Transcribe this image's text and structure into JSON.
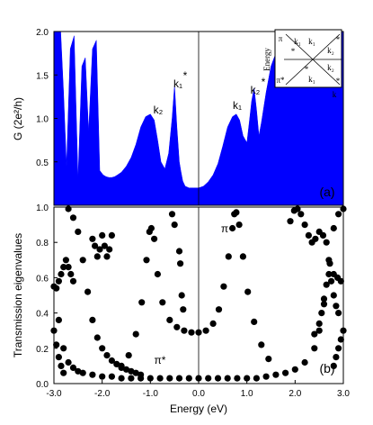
{
  "chart_data": [
    {
      "type": "area",
      "panel_tag": "(a)",
      "ylabel": "G (2e²/h)",
      "ylim": [
        0.0,
        2.0
      ],
      "xlim": [
        -3.0,
        3.0
      ],
      "yticks": [
        "0.5",
        "1.0",
        "1.5",
        "2.0"
      ],
      "fill_color": "#0000ff",
      "grid": false,
      "x": [
        -3.0,
        -2.92,
        -2.86,
        -2.8,
        -2.74,
        -2.66,
        -2.58,
        -2.5,
        -2.42,
        -2.35,
        -2.28,
        -2.2,
        -2.12,
        -2.05,
        -1.98,
        -1.92,
        -1.86,
        -1.8,
        -1.74,
        -1.68,
        -1.6,
        -1.5,
        -1.4,
        -1.3,
        -1.2,
        -1.1,
        -1.0,
        -0.92,
        -0.85,
        -0.78,
        -0.7,
        -0.62,
        -0.55,
        -0.5,
        -0.45,
        -0.4,
        -0.37,
        -0.33,
        -0.28,
        -0.2,
        -0.1,
        0.0,
        0.1,
        0.2,
        0.3,
        0.4,
        0.5,
        0.6,
        0.7,
        0.78,
        0.85,
        0.92,
        1.0,
        1.05,
        1.1,
        1.15,
        1.2,
        1.25,
        1.3,
        1.4,
        1.5,
        1.6,
        1.7,
        1.8,
        1.9,
        2.0,
        2.1,
        2.2,
        2.3,
        2.4,
        2.5,
        2.6,
        2.7,
        2.8,
        2.9,
        3.0
      ],
      "y": [
        2.0,
        2.0,
        2.0,
        1.3,
        0.45,
        1.8,
        1.95,
        0.3,
        1.6,
        1.7,
        0.85,
        1.8,
        1.9,
        0.4,
        0.35,
        0.33,
        0.32,
        0.32,
        0.33,
        0.35,
        0.38,
        0.45,
        0.55,
        0.7,
        0.9,
        1.02,
        1.05,
        0.98,
        0.75,
        0.5,
        0.42,
        0.6,
        1.0,
        1.38,
        0.9,
        0.5,
        0.4,
        0.28,
        0.22,
        0.2,
        0.2,
        0.2,
        0.22,
        0.27,
        0.35,
        0.48,
        0.68,
        0.9,
        1.02,
        1.05,
        0.98,
        0.8,
        0.72,
        0.95,
        1.2,
        1.35,
        1.1,
        0.8,
        0.95,
        1.3,
        1.6,
        1.75,
        1.85,
        1.95,
        2.0,
        2.0,
        1.9,
        2.0,
        2.0,
        1.95,
        2.0,
        2.0,
        1.9,
        2.0,
        2.0,
        2.0
      ],
      "annotations": [
        "k₂",
        "k₁",
        "*",
        "k₁",
        "k₂",
        "*"
      ],
      "inset": {
        "labels": [
          "π",
          "π*",
          "k₁",
          "k₂",
          "k₁",
          "k₂",
          "k₁",
          "*",
          "*",
          "*",
          "*"
        ],
        "ylabel": "Energy",
        "xlabel": "k"
      }
    },
    {
      "type": "scatter",
      "panel_tag": "(b)",
      "ylabel": "Transmission eigenvalues",
      "xlabel": "Energy (eV)",
      "ylim": [
        0.0,
        1.0
      ],
      "xlim": [
        -3.0,
        3.0
      ],
      "xticks": [
        "-3.0",
        "-2.0",
        "-1.0",
        "0.0",
        "1.0",
        "2.0",
        "3.0"
      ],
      "yticks": [
        "0.0",
        "0.2",
        "0.4",
        "0.6",
        "0.8",
        "1.0"
      ],
      "grid": false,
      "annotations": [
        "π",
        "π*"
      ],
      "series": [
        {
          "x": [
            -1.6,
            -1.45,
            -1.3,
            -1.18,
            -1.08,
            -1.02,
            -0.98,
            -0.92,
            -0.85,
            -0.75,
            -0.6,
            -0.45,
            -0.3,
            -0.15,
            0.0,
            0.15,
            0.3,
            0.42,
            0.52,
            0.62,
            0.7,
            0.74,
            0.78,
            0.84,
            0.92,
            1.02,
            1.15,
            1.3,
            1.45
          ],
          "y": [
            0.1,
            0.16,
            0.28,
            0.46,
            0.7,
            0.86,
            0.88,
            0.82,
            0.62,
            0.46,
            0.36,
            0.32,
            0.3,
            0.29,
            0.29,
            0.3,
            0.34,
            0.42,
            0.55,
            0.72,
            0.88,
            0.96,
            0.97,
            0.9,
            0.72,
            0.52,
            0.35,
            0.22,
            0.14
          ]
        },
        {
          "x": [
            -3.0,
            -2.9,
            -2.8,
            -2.7,
            -2.6,
            -2.5,
            -2.4,
            -2.2,
            -2.0,
            -1.8,
            -1.6,
            -1.4,
            -1.2,
            -1.0,
            -0.8,
            -0.6,
            -0.4,
            -0.2,
            0.0,
            0.2,
            0.4,
            0.6,
            0.8,
            1.0,
            1.2,
            1.4,
            1.6,
            1.8,
            2.0,
            2.2,
            2.4,
            2.5,
            2.6,
            2.7,
            2.8,
            2.9,
            3.0
          ],
          "y": [
            0.55,
            0.36,
            0.2,
            0.12,
            0.09,
            0.07,
            0.06,
            0.05,
            0.04,
            0.04,
            0.03,
            0.03,
            0.03,
            0.03,
            0.03,
            0.03,
            0.03,
            0.03,
            0.03,
            0.03,
            0.03,
            0.03,
            0.03,
            0.03,
            0.03,
            0.04,
            0.05,
            0.06,
            0.08,
            0.12,
            0.2,
            0.3,
            0.45,
            0.7,
            0.88,
            0.96,
            0.99
          ]
        },
        {
          "x": [
            -2.7,
            -2.6,
            -2.5,
            -2.4,
            -2.3,
            -2.2,
            -2.1,
            -2.0,
            -1.9,
            -1.8,
            -1.7,
            -1.6,
            -1.5,
            -1.4,
            -1.3,
            -1.2
          ],
          "y": [
            0.99,
            0.94,
            0.86,
            0.7,
            0.52,
            0.36,
            0.26,
            0.2,
            0.16,
            0.13,
            0.11,
            0.09,
            0.08,
            0.07,
            0.06,
            0.05
          ]
        },
        {
          "x": [
            -2.2,
            -2.15,
            -2.1,
            -2.05,
            -2.0,
            -1.95,
            -1.9,
            -1.85,
            -1.8
          ],
          "y": [
            0.82,
            0.78,
            0.72,
            0.76,
            0.84,
            0.78,
            0.72,
            0.76,
            0.84
          ]
        },
        {
          "x": [
            -2.95,
            -2.9,
            -2.85,
            -2.8,
            -2.75,
            -2.7,
            -2.65,
            -2.6
          ],
          "y": [
            0.54,
            0.58,
            0.62,
            0.66,
            0.7,
            0.66,
            0.62,
            0.58
          ]
        },
        {
          "x": [
            1.9,
            1.98,
            2.05,
            2.12,
            2.2,
            2.28,
            2.35,
            2.42,
            2.5,
            2.58,
            2.65,
            2.72,
            2.8,
            2.88,
            2.95
          ],
          "y": [
            0.92,
            0.98,
            0.99,
            0.96,
            0.9,
            0.84,
            0.8,
            0.82,
            0.86,
            0.84,
            0.8,
            0.68,
            0.62,
            0.6,
            0.58
          ]
        },
        {
          "x": [
            2.4,
            2.5,
            2.55,
            2.6,
            2.65,
            2.7,
            2.75,
            2.8,
            2.85,
            2.9
          ],
          "y": [
            0.28,
            0.34,
            0.4,
            0.48,
            0.56,
            0.62,
            0.58,
            0.5,
            0.44,
            0.4
          ]
        },
        {
          "x": [
            -0.4,
            -0.38,
            -0.35,
            -0.32,
            -0.55,
            -0.5
          ],
          "y": [
            0.75,
            0.68,
            0.5,
            0.42,
            0.96,
            0.9
          ]
        },
        {
          "x": [
            -3.0,
            -2.95,
            -2.9,
            -2.85,
            -2.8,
            2.8,
            2.85,
            2.9,
            2.95,
            3.0
          ],
          "y": [
            0.3,
            0.22,
            0.15,
            0.1,
            0.06,
            0.1,
            0.15,
            0.2,
            0.25,
            0.3
          ]
        }
      ]
    }
  ]
}
